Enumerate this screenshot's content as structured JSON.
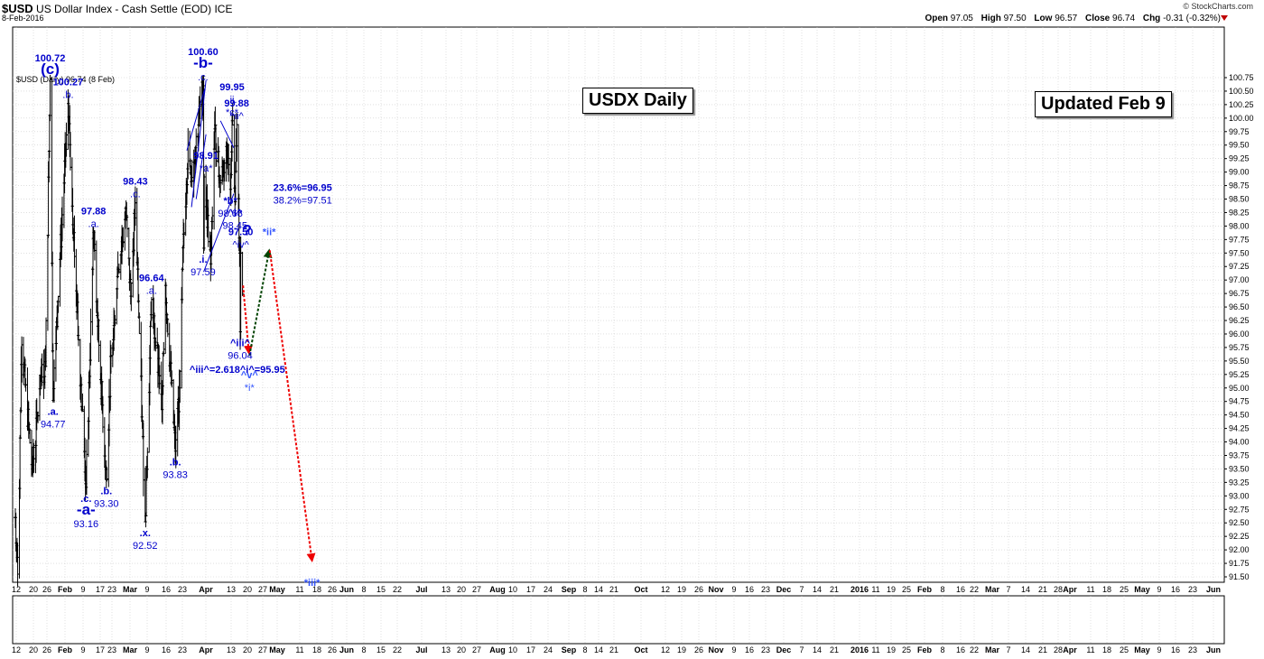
{
  "header": {
    "symbol": "$USD",
    "name": "US Dollar Index - Cash Settle (EOD)",
    "exchange": "ICE",
    "date": "8-Feb-2016",
    "logo": "© StockCharts.com",
    "open_label": "Open",
    "open": "97.05",
    "high_label": "High",
    "high": "97.50",
    "low_label": "Low",
    "low": "96.57",
    "close_label": "Close",
    "close": "96.74",
    "chg_label": "Chg",
    "chg": "-0.31 (-0.32%)"
  },
  "legend": "$USD (Daily) 96.74 (8 Feb)",
  "boxes": {
    "title": "USDX Daily",
    "updated": "Updated Feb 9"
  },
  "colors": {
    "bars": "#000000",
    "annotation": "#0000cc",
    "arrow_down": "#ee0000",
    "arrow_up": "#004400",
    "grid": "#cccccc"
  },
  "chart_data": {
    "type": "ohlc",
    "x_start": "2015-01-12",
    "y_axis": {
      "range": [
        91.5,
        100.75
      ],
      "ticks": [
        91.5,
        91.75,
        92,
        92.25,
        92.5,
        92.75,
        93,
        93.25,
        93.5,
        93.75,
        94,
        94.25,
        94.5,
        94.75,
        95,
        95.25,
        95.5,
        95.75,
        96,
        96.25,
        96.5,
        96.75,
        97,
        97.25,
        97.5,
        97.75,
        98,
        98.25,
        98.5,
        98.75,
        99,
        99.25,
        99.5,
        99.75,
        100,
        100.25,
        100.5,
        100.75
      ],
      "position": "right"
    },
    "x_ticks": [
      "12",
      "20",
      "26",
      "Feb",
      "9",
      "17",
      "23",
      "Mar",
      "9",
      "16",
      "23",
      "Apr",
      "13",
      "20",
      "27",
      "May",
      "11",
      "18",
      "26",
      "Jun",
      "8",
      "15",
      "22",
      "Jul",
      "13",
      "20",
      "27",
      "Aug",
      "10",
      "17",
      "24",
      "Sep",
      "8",
      "14",
      "21",
      "Oct",
      "12",
      "19",
      "26",
      "Nov",
      "9",
      "16",
      "23",
      "Dec",
      "7",
      "14",
      "21",
      "2016",
      "11",
      "19",
      "25",
      "Feb",
      "8",
      "16",
      "22",
      "Mar",
      "7",
      "14",
      "21",
      "28",
      "Apr",
      "11",
      "18",
      "25",
      "May",
      "9",
      "16",
      "23",
      "Jun"
    ],
    "key_points": [
      {
        "date": "2015-01-12",
        "price": 92.6
      },
      {
        "date": "2015-01-16",
        "price": 91.55
      },
      {
        "date": "2015-01-23",
        "price": 95.8
      },
      {
        "date": "2015-02-10",
        "price": 93.5
      },
      {
        "date": "2015-02-26",
        "price": 95.2
      },
      {
        "date": "2015-03-05",
        "price": 95.4
      },
      {
        "date": "2015-03-13",
        "price": 100.72
      },
      {
        "date": "2015-03-18",
        "price": 94.77
      },
      {
        "date": "2015-03-26",
        "price": 96.6
      },
      {
        "date": "2015-04-13",
        "price": 100.27
      },
      {
        "date": "2015-04-27",
        "price": 96.8
      },
      {
        "date": "2015-05-14",
        "price": 93.16
      },
      {
        "date": "2015-05-27",
        "price": 97.88
      },
      {
        "date": "2015-06-01",
        "price": 96.6
      },
      {
        "date": "2015-06-18",
        "price": 93.3
      },
      {
        "date": "2015-06-26",
        "price": 95.6
      },
      {
        "date": "2015-07-08",
        "price": 97.2
      },
      {
        "date": "2015-07-22",
        "price": 98.2
      },
      {
        "date": "2015-07-30",
        "price": 96.7
      },
      {
        "date": "2015-08-07",
        "price": 98.43
      },
      {
        "date": "2015-08-24",
        "price": 92.52
      },
      {
        "date": "2015-09-04",
        "price": 96.64
      },
      {
        "date": "2015-09-22",
        "price": 94.6
      },
      {
        "date": "2015-09-28",
        "price": 96.9
      },
      {
        "date": "2015-10-15",
        "price": 93.83
      },
      {
        "date": "2015-10-22",
        "price": 95.0
      },
      {
        "date": "2015-10-27",
        "price": 97.2
      },
      {
        "date": "2015-11-06",
        "price": 99.5
      },
      {
        "date": "2015-11-12",
        "price": 98.9
      },
      {
        "date": "2015-12-02",
        "price": 100.6
      },
      {
        "date": "2015-12-03",
        "price": 97.59
      },
      {
        "date": "2015-12-04",
        "price": 98.91
      },
      {
        "date": "2015-12-15",
        "price": 97.3
      },
      {
        "date": "2015-12-22",
        "price": 99.8
      },
      {
        "date": "2015-12-31",
        "price": 98.8
      },
      {
        "date": "2016-01-12",
        "price": 99.4
      },
      {
        "date": "2016-01-18",
        "price": 98.68
      },
      {
        "date": "2016-01-21",
        "price": 99.95
      },
      {
        "date": "2016-01-26",
        "price": 98.45
      },
      {
        "date": "2016-01-29",
        "price": 99.88
      },
      {
        "date": "2016-02-03",
        "price": 97.5
      },
      {
        "date": "2016-02-04",
        "price": 96.04
      },
      {
        "date": "2016-02-05",
        "price": 97.5
      },
      {
        "date": "2016-02-08",
        "price": 96.74
      }
    ],
    "projection": [
      {
        "date": "2016-02-09",
        "price": 96.9,
        "color": "arrow_down"
      },
      {
        "date": "2016-02-19",
        "price": 95.65,
        "color": "arrow_down"
      },
      {
        "date": "2016-02-20",
        "price": 95.6,
        "color": "arrow_up"
      },
      {
        "date": "2016-03-25",
        "price": 97.55,
        "color": "arrow_up"
      },
      {
        "date": "2016-03-26",
        "price": 97.55,
        "color": "arrow_down"
      },
      {
        "date": "2016-06-07",
        "price": 91.8,
        "color": "arrow_down"
      }
    ],
    "annotations": [
      {
        "lines": [
          "100.72",
          "(c)"
        ],
        "date": "2015-03-13",
        "price": 100.72,
        "pos": "above",
        "big": [
          1
        ]
      },
      {
        "lines": [
          ".a.",
          "94.77"
        ],
        "date": "2015-03-18",
        "price": 94.77,
        "pos": "below"
      },
      {
        "lines": [
          "100.27",
          ".b."
        ],
        "date": "2015-04-13",
        "price": 100.27,
        "pos": "above"
      },
      {
        "lines": [
          ".c.",
          "-a-",
          "93.16"
        ],
        "date": "2015-05-14",
        "price": 93.16,
        "pos": "below",
        "big": [
          1
        ]
      },
      {
        "lines": [
          "97.88",
          ".a."
        ],
        "date": "2015-05-27",
        "price": 97.88,
        "pos": "above"
      },
      {
        "lines": [
          ".b.",
          "93.30"
        ],
        "date": "2015-06-18",
        "price": 93.3,
        "pos": "below"
      },
      {
        "lines": [
          "98.43",
          ".c."
        ],
        "date": "2015-08-07",
        "price": 98.43,
        "pos": "above"
      },
      {
        "lines": [
          ".x.",
          "92.52"
        ],
        "date": "2015-08-24",
        "price": 92.52,
        "pos": "below"
      },
      {
        "lines": [
          "96.64",
          ".a."
        ],
        "date": "2015-09-04",
        "price": 96.64,
        "pos": "above"
      },
      {
        "lines": [
          ".b.",
          "93.83"
        ],
        "date": "2015-10-15",
        "price": 93.83,
        "pos": "below"
      },
      {
        "lines": [
          "100.60",
          "-b-",
          ".c."
        ],
        "date": "2015-12-02",
        "price": 100.6,
        "pos": "above",
        "big": [
          1
        ]
      },
      {
        "lines": [
          "98.91",
          "*a*"
        ],
        "date": "2015-12-07",
        "price": 98.91,
        "pos": "above"
      },
      {
        "lines": [
          ".i.",
          "97.59"
        ],
        "date": "2015-12-02",
        "price": 97.59,
        "pos": "below"
      },
      {
        "lines": [
          "99.95",
          ".ii.",
          "*c*"
        ],
        "date": "2016-01-21",
        "price": 99.95,
        "pos": "above"
      },
      {
        "lines": [
          "99.88",
          "^ii^"
        ],
        "date": "2016-01-29",
        "price": 99.88,
        "pos": "above"
      },
      {
        "lines": [
          "*b*",
          "98.68"
        ],
        "date": "2016-01-18",
        "price": 98.68,
        "pos": "below"
      },
      {
        "lines": [
          "^i^",
          "98.45"
        ],
        "date": "2016-01-26",
        "price": 98.45,
        "pos": "below"
      },
      {
        "lines": [
          "23.6%=96.95",
          "38.2%=97.51"
        ],
        "date": "2016-02-08",
        "price": 98.6,
        "pos": "right"
      },
      {
        "lines": [
          "97.50",
          "^iv^"
        ],
        "date": "2016-02-05",
        "price": 97.5,
        "pos": "above"
      },
      {
        "lines": [
          "?"
        ],
        "date": "2016-02-16",
        "price": 97.9,
        "pos": "center",
        "big": [
          0
        ]
      },
      {
        "lines": [
          "^iii^",
          "96.04"
        ],
        "date": "2016-02-04",
        "price": 96.04,
        "pos": "below"
      },
      {
        "lines": [
          "^iii^=2.618^i^=95.95"
        ],
        "date": "2016-01-30",
        "price": 95.35,
        "pos": "center"
      },
      {
        "lines": [
          "^v^",
          "*i*"
        ],
        "date": "2016-02-20",
        "price": 95.45,
        "pos": "below",
        "light": true
      },
      {
        "lines": [
          "*ii*"
        ],
        "date": "2016-03-25",
        "price": 97.9,
        "pos": "center",
        "light": true
      },
      {
        "lines": [
          "*iii*"
        ],
        "date": "2016-06-07",
        "price": 91.6,
        "pos": "below",
        "light": true
      }
    ]
  }
}
